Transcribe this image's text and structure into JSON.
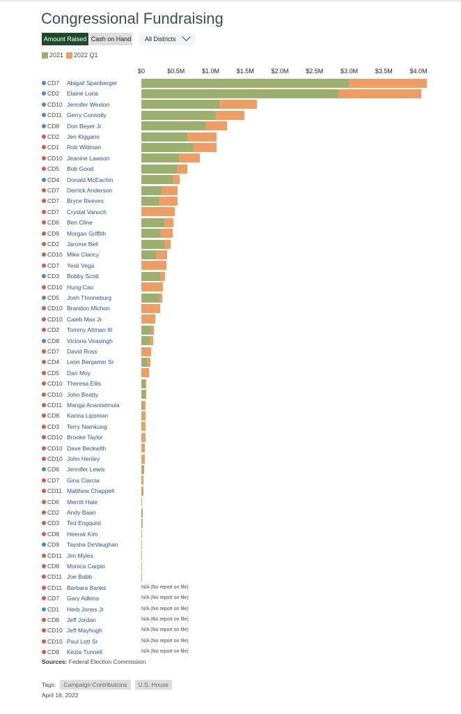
{
  "title": "Congressional Fundraising",
  "controls": {
    "amount_raised": "Amount Raised",
    "cash_on_hand": "Cash on Hand",
    "district_select": "All Districts"
  },
  "colors": {
    "2021": "#9caf6f",
    "2022 Q1": "#ec9e64",
    "democrat": "#4a86d0",
    "republican": "#d05a53"
  },
  "chart_data": {
    "type": "bar",
    "orientation": "horizontal",
    "stacked": true,
    "unit": "$M",
    "xlim": [
      0,
      4.0
    ],
    "tick_labels": [
      "$0",
      "$0.5M",
      "$1.0M",
      "$1.5M",
      "$2.0M",
      "$2.5M",
      "$3.0M",
      "$3.5M",
      "$4.0M"
    ],
    "legend": [
      "2021",
      "2022 Q1"
    ],
    "legend_position": "top-left",
    "na_label": "N/A (No report on file)",
    "rows": [
      {
        "district": "CD7",
        "name": "Abigail Spanberger",
        "party": "D",
        "v2021": 2.99,
        "v2022q1": 1.13
      },
      {
        "district": "CD2",
        "name": "Elaine Luria",
        "party": "D",
        "v2021": 2.84,
        "v2022q1": 1.2
      },
      {
        "district": "CD10",
        "name": "Jennifer Wexton",
        "party": "D",
        "v2021": 1.13,
        "v2022q1": 0.54
      },
      {
        "district": "CD11",
        "name": "Gerry Connolly",
        "party": "D",
        "v2021": 1.07,
        "v2022q1": 0.42
      },
      {
        "district": "CD8",
        "name": "Don Beyer Jr",
        "party": "D",
        "v2021": 0.92,
        "v2022q1": 0.32
      },
      {
        "district": "CD2",
        "name": "Jen Kiggans",
        "party": "R",
        "v2021": 0.66,
        "v2022q1": 0.43
      },
      {
        "district": "CD1",
        "name": "Rob Wittman",
        "party": "R",
        "v2021": 0.75,
        "v2022q1": 0.34
      },
      {
        "district": "CD10",
        "name": "Jeanine Lawson",
        "party": "R",
        "v2021": 0.54,
        "v2022q1": 0.3
      },
      {
        "district": "CD5",
        "name": "Bob Good",
        "party": "R",
        "v2021": 0.51,
        "v2022q1": 0.15
      },
      {
        "district": "CD4",
        "name": "Donald McEachin",
        "party": "D",
        "v2021": 0.45,
        "v2022q1": 0.1
      },
      {
        "district": "CD7",
        "name": "Derrick Anderson",
        "party": "R",
        "v2021": 0.29,
        "v2022q1": 0.23
      },
      {
        "district": "CD7",
        "name": "Bryce Reeves",
        "party": "R",
        "v2021": 0.25,
        "v2022q1": 0.27
      },
      {
        "district": "CD7",
        "name": "Crystal Vanuch",
        "party": "R",
        "v2021": 0,
        "v2022q1": 0.48
      },
      {
        "district": "CD6",
        "name": "Ben Cline",
        "party": "R",
        "v2021": 0.33,
        "v2022q1": 0.13
      },
      {
        "district": "CD9",
        "name": "Morgan Griffith",
        "party": "R",
        "v2021": 0.28,
        "v2022q1": 0.17
      },
      {
        "district": "CD2",
        "name": "Jarome Bell",
        "party": "R",
        "v2021": 0.33,
        "v2022q1": 0.09
      },
      {
        "district": "CD10",
        "name": "Mike Clancy",
        "party": "R",
        "v2021": 0.21,
        "v2022q1": 0.16
      },
      {
        "district": "CD7",
        "name": "Yesli Vega",
        "party": "R",
        "v2021": 0,
        "v2022q1": 0.36
      },
      {
        "district": "CD3",
        "name": "Bobby Scott",
        "party": "D",
        "v2021": 0.27,
        "v2022q1": 0.07
      },
      {
        "district": "CD10",
        "name": "Hung Cao",
        "party": "R",
        "v2021": 0,
        "v2022q1": 0.31
      },
      {
        "district": "CD5",
        "name": "Josh Throneburg",
        "party": "D",
        "v2021": 0.265,
        "v2022q1": 0.035
      },
      {
        "district": "CD10",
        "name": "Brandon Michon",
        "party": "R",
        "v2021": 0,
        "v2022q1": 0.275
      },
      {
        "district": "CD10",
        "name": "Caleb Max Jr",
        "party": "R",
        "v2021": 0,
        "v2022q1": 0.205
      },
      {
        "district": "CD2",
        "name": "Tommy Altman III",
        "party": "R",
        "v2021": 0.14,
        "v2022q1": 0.045
      },
      {
        "district": "CD8",
        "name": "Victoria Virasingh",
        "party": "D",
        "v2021": 0.125,
        "v2022q1": 0.045
      },
      {
        "district": "CD7",
        "name": "David Ross",
        "party": "R",
        "v2021": 0,
        "v2022q1": 0.14
      },
      {
        "district": "CD4",
        "name": "Leon Benjamin Sr",
        "party": "R",
        "v2021": 0.085,
        "v2022q1": 0.045
      },
      {
        "district": "CD5",
        "name": "Dan Moy",
        "party": "R",
        "v2021": 0,
        "v2022q1": 0.11
      },
      {
        "district": "CD10",
        "name": "Theresa Ellis",
        "party": "R",
        "v2021": 0.05,
        "v2022q1": 0.025
      },
      {
        "district": "CD10",
        "name": "John Beatty",
        "party": "R",
        "v2021": 0.065,
        "v2022q1": 0.005
      },
      {
        "district": "CD11",
        "name": "Manga Anantatmula",
        "party": "R",
        "v2021": 0.03,
        "v2022q1": 0.035
      },
      {
        "district": "CD8",
        "name": "Karina Lipsman",
        "party": "R",
        "v2021": 0,
        "v2022q1": 0.057
      },
      {
        "district": "CD3",
        "name": "Terry Namkung",
        "party": "R",
        "v2021": 0.015,
        "v2022q1": 0.042
      },
      {
        "district": "CD10",
        "name": "Brooke Taylor",
        "party": "R",
        "v2021": 0,
        "v2022q1": 0.057
      },
      {
        "district": "CD10",
        "name": "Dave Beckwith",
        "party": "R",
        "v2021": 0,
        "v2022q1": 0.05
      },
      {
        "district": "CD10",
        "name": "John Henley",
        "party": "R",
        "v2021": 0,
        "v2022q1": 0.05
      },
      {
        "district": "CD6",
        "name": "Jennifer Lewis",
        "party": "D",
        "v2021": 0.027,
        "v2022q1": 0.005
      },
      {
        "district": "CD7",
        "name": "Gina Ciarcia",
        "party": "R",
        "v2021": 0,
        "v2022q1": 0.032
      },
      {
        "district": "CD11",
        "name": "Matthew Chappell",
        "party": "R",
        "v2021": 0.013,
        "v2022q1": 0.014
      },
      {
        "district": "CD6",
        "name": "Merritt Hale",
        "party": "R",
        "v2021": 0,
        "v2022q1": 0.015
      },
      {
        "district": "CD2",
        "name": "Andy Baan",
        "party": "R",
        "v2021": 0.02,
        "v2022q1": 0
      },
      {
        "district": "CD3",
        "name": "Ted Engquist",
        "party": "R",
        "v2021": 0.013,
        "v2022q1": 0.007
      },
      {
        "district": "CD8",
        "name": "Heerak Kim",
        "party": "R",
        "v2021": 0,
        "v2022q1": 0.01
      },
      {
        "district": "CD9",
        "name": "Taysha DeVaughan",
        "party": "D",
        "v2021": 0,
        "v2022q1": 0.008
      },
      {
        "district": "CD11",
        "name": "Jim Myles",
        "party": "R",
        "v2021": 0,
        "v2022q1": 0.007
      },
      {
        "district": "CD8",
        "name": "Monica Carpio",
        "party": "R",
        "v2021": 0,
        "v2022q1": 0.006
      },
      {
        "district": "CD11",
        "name": "Joe Babb",
        "party": "R",
        "v2021": 0,
        "v2022q1": 0.005
      },
      {
        "district": "CD11",
        "name": "Barbara Banks",
        "party": "R",
        "na": true
      },
      {
        "district": "CD7",
        "name": "Gary Adkins",
        "party": "R",
        "na": true
      },
      {
        "district": "CD1",
        "name": "Herb Jones Jr",
        "party": "D",
        "na": true
      },
      {
        "district": "CD8",
        "name": "Jeff Jordan",
        "party": "R",
        "na": true
      },
      {
        "district": "CD10",
        "name": "Jeff Mayhugh",
        "party": "R",
        "na": true
      },
      {
        "district": "CD10",
        "name": "Paul Lott Sr",
        "party": "R",
        "na": true
      },
      {
        "district": "CD8",
        "name": "Kezia Tunnell",
        "party": "R",
        "na": true
      }
    ]
  },
  "footer": {
    "sources_label": "Sources:",
    "sources": "Federal Election Commission",
    "tags_label": "Tags:",
    "tags": [
      "Campaign Contributions",
      "U.S. House"
    ],
    "date": "April 16, 2022"
  }
}
